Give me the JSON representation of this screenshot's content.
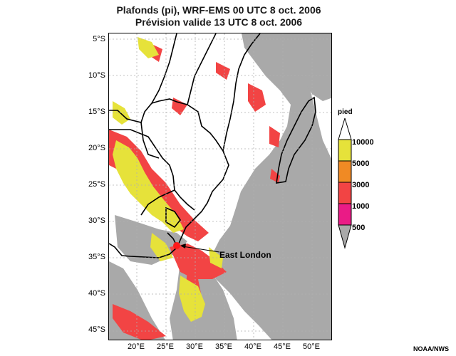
{
  "title": {
    "line1": "Plafonds (pi), WRF-EMS 00 UTC 8 oct. 2006",
    "line2": "Prévision valide 13 UTC 8 oct. 2006"
  },
  "axes": {
    "lat_labels": [
      "5°S",
      "10°S",
      "15°S",
      "20°S",
      "25°S",
      "30°S",
      "35°S",
      "40°S",
      "45°S"
    ],
    "lon_labels": [
      "20°E",
      "25°E",
      "30°E",
      "35°E",
      "40°E",
      "45°E",
      "50°E"
    ]
  },
  "legend": {
    "title": "pied",
    "levels": [
      {
        "label": "10000",
        "color": "#e6e23a"
      },
      {
        "label": "5000",
        "color": "#f08a24"
      },
      {
        "label": "3000",
        "color": "#f24444"
      },
      {
        "label": "1000",
        "color": "#ea1b86"
      },
      {
        "label": "500",
        "color": "#a9a9a9"
      }
    ]
  },
  "annotation": {
    "label": "East London",
    "marker_color": "#ff1a1a"
  },
  "credit": "NOAA/NWS",
  "colors": {
    "clear": "#ffffff",
    "low_cloud": "#a9a9a9",
    "mid_cloud": "#f24444",
    "high_cloud": "#e6e23a",
    "borders": "#000000",
    "grid": "#b0b0b0"
  }
}
